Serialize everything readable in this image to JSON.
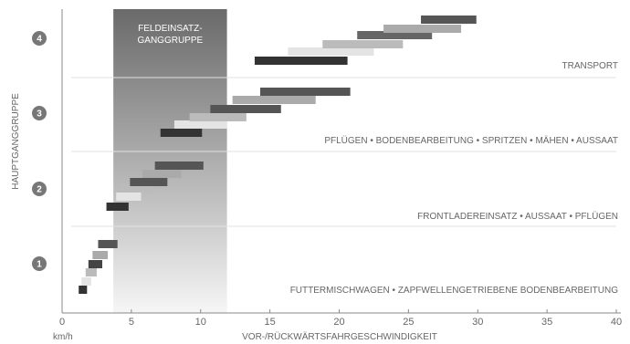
{
  "chart_data": {
    "type": "range-bar",
    "xlabel": "VOR-/RÜCKWÄRTSFAHRGESCHWINDIGKEIT",
    "xunit": "km/h",
    "ylabel": "HAUPTGANGGRUPPE",
    "xlim": [
      0,
      40
    ],
    "xticks": [
      0,
      5,
      10,
      15,
      20,
      25,
      30,
      35,
      40
    ],
    "grid": "horizontal separators between gear groups",
    "highlight": {
      "label_line1": "FELDEINSATZ-",
      "label_line2": "GANGGRUPPE",
      "range": [
        3.7,
        11.9
      ]
    },
    "groups": [
      {
        "number": "1",
        "application": "FUTTERMISCHWAGEN • ZAPFWELLENGETRIEBENE BODENBEARBEITUNG",
        "gears": [
          {
            "range": [
              1.2,
              1.8
            ],
            "shade": "#333333"
          },
          {
            "range": [
              1.4,
              2.1
            ],
            "shade": "#e4e4e4"
          },
          {
            "range": [
              1.7,
              2.5
            ],
            "shade": "#bbbbbb"
          },
          {
            "range": [
              1.9,
              2.9
            ],
            "shade": "#444444"
          },
          {
            "range": [
              2.2,
              3.3
            ],
            "shade": "#aaaaaa"
          },
          {
            "range": [
              2.6,
              4.0
            ],
            "shade": "#555555"
          }
        ]
      },
      {
        "number": "2",
        "application": "FRONTLADEREINSATZ • AUSSAAT • PFLÜGEN",
        "gears": [
          {
            "range": [
              3.2,
              4.8
            ],
            "shade": "#333333"
          },
          {
            "range": [
              3.9,
              5.7
            ],
            "shade": "#e4e4e4"
          },
          {
            "range": [
              4.2,
              6.5
            ],
            "shade": "#bbbbbb"
          },
          {
            "range": [
              4.9,
              7.6
            ],
            "shade": "#555555"
          },
          {
            "range": [
              5.8,
              8.6
            ],
            "shade": "#aaaaaa"
          },
          {
            "range": [
              6.7,
              10.2
            ],
            "shade": "#555555"
          }
        ]
      },
      {
        "number": "3",
        "application": "PFLÜGEN • BODENBEARBEITUNG • SPRITZEN • MÄHEN • AUSSAAT",
        "gears": [
          {
            "range": [
              7.1,
              10.1
            ],
            "shade": "#333333"
          },
          {
            "range": [
              8.1,
              11.9
            ],
            "shade": "#e4e4e4"
          },
          {
            "range": [
              9.2,
              13.3
            ],
            "shade": "#bbbbbb"
          },
          {
            "range": [
              10.7,
              15.8
            ],
            "shade": "#555555"
          },
          {
            "range": [
              12.3,
              18.3
            ],
            "shade": "#aaaaaa"
          },
          {
            "range": [
              14.3,
              20.8
            ],
            "shade": "#555555"
          }
        ]
      },
      {
        "number": "4",
        "application": "TRANSPORT",
        "gears": [
          {
            "range": [
              13.9,
              20.6
            ],
            "shade": "#333333"
          },
          {
            "range": [
              16.3,
              22.5
            ],
            "shade": "#e4e4e4"
          },
          {
            "range": [
              18.8,
              24.6
            ],
            "shade": "#bbbbbb"
          },
          {
            "range": [
              21.3,
              26.7
            ],
            "shade": "#666666"
          },
          {
            "range": [
              23.2,
              28.8
            ],
            "shade": "#aaaaaa"
          },
          {
            "range": [
              25.9,
              29.9
            ],
            "shade": "#555555"
          }
        ]
      }
    ]
  }
}
